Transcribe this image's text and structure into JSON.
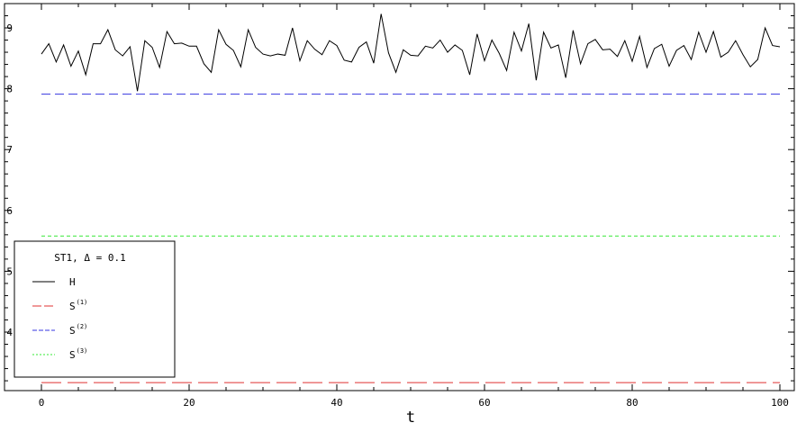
{
  "chart_data": {
    "type": "line",
    "title": "",
    "xlabel": "t",
    "ylabel": "",
    "xlim": [
      -1,
      101
    ],
    "ylim": [
      3.1,
      9.35
    ],
    "grid": false,
    "legend_placement": "bottom-left",
    "x_ticks": [
      0,
      20,
      40,
      60,
      80,
      100
    ],
    "y_ticks": [
      4,
      5,
      6,
      7,
      8,
      9
    ],
    "legend_title": "ST1, Δ = 0.1",
    "series": [
      {
        "name": "H",
        "legend_base": "H",
        "legend_sup": "",
        "color": "#000000",
        "dash": "",
        "x": [
          0,
          1,
          2,
          3,
          4,
          5,
          6,
          7,
          8,
          9,
          10,
          11,
          12,
          13,
          14,
          15,
          16,
          17,
          18,
          19,
          20,
          21,
          22,
          23,
          24,
          25,
          26,
          27,
          28,
          29,
          30,
          31,
          32,
          33,
          34,
          35,
          36,
          37,
          38,
          39,
          40,
          41,
          42,
          43,
          44,
          45,
          46,
          47,
          48,
          49,
          50,
          51,
          52,
          53,
          54,
          55,
          56,
          57,
          58,
          59,
          60,
          61,
          62,
          63,
          64,
          65,
          66,
          67,
          68,
          69,
          70,
          71,
          72,
          73,
          74,
          75,
          76,
          77,
          78,
          79,
          80,
          81,
          82,
          83,
          84,
          85,
          86,
          87,
          88,
          89,
          90,
          91,
          92,
          93,
          94,
          95,
          96,
          97,
          98,
          99,
          100
        ],
        "values": [
          8.57,
          8.74,
          8.44,
          8.72,
          8.37,
          8.62,
          8.23,
          8.74,
          8.74,
          8.97,
          8.64,
          8.54,
          8.69,
          7.96,
          8.79,
          8.68,
          8.35,
          8.94,
          8.74,
          8.75,
          8.7,
          8.7,
          8.41,
          8.27,
          8.97,
          8.73,
          8.63,
          8.36,
          8.97,
          8.68,
          8.57,
          8.54,
          8.57,
          8.55,
          9.0,
          8.46,
          8.79,
          8.65,
          8.56,
          8.79,
          8.71,
          8.47,
          8.44,
          8.68,
          8.77,
          8.42,
          9.23,
          8.59,
          8.27,
          8.64,
          8.55,
          8.54,
          8.7,
          8.67,
          8.8,
          8.6,
          8.72,
          8.63,
          8.23,
          8.9,
          8.46,
          8.8,
          8.58,
          8.3,
          8.93,
          8.62,
          9.07,
          8.14,
          8.93,
          8.67,
          8.72,
          8.18,
          8.96,
          8.41,
          8.74,
          8.81,
          8.64,
          8.65,
          8.53,
          8.79,
          8.45,
          8.86,
          8.35,
          8.66,
          8.73,
          8.37,
          8.63,
          8.71,
          8.48,
          8.93,
          8.6,
          8.94,
          8.52,
          8.6,
          8.79,
          8.56,
          8.36,
          8.48,
          9.0,
          8.71,
          8.69
        ]
      },
      {
        "name": "S(1)",
        "legend_base": "S",
        "legend_sup": "(1)",
        "color": "#e03030",
        "dash": "22,7",
        "x": [
          0,
          100
        ],
        "values": [
          3.17,
          3.17
        ]
      },
      {
        "name": "S(2)",
        "legend_base": "S",
        "legend_sup": "(2)",
        "color": "#3535e0",
        "dash": "10,5",
        "x": [
          0,
          100
        ],
        "values": [
          7.91,
          7.91
        ]
      },
      {
        "name": "S(3)",
        "legend_base": "S",
        "legend_sup": "(3)",
        "color": "#36e836",
        "dash": "4,3",
        "x": [
          0,
          100
        ],
        "values": [
          5.58,
          5.58
        ]
      }
    ]
  }
}
